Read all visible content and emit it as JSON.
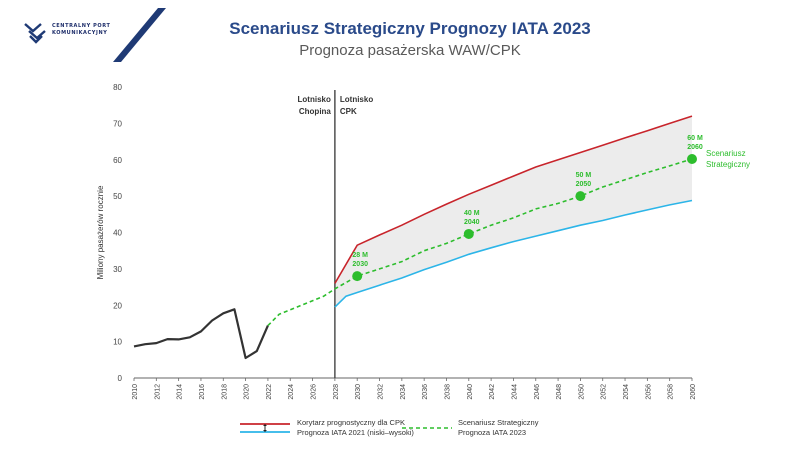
{
  "logo": {
    "line1": "CENTRALNY PORT",
    "line2": "KOMUNIKACYJNY"
  },
  "colors": {
    "navy": "#1f3a75",
    "title": "#2a4a8a",
    "subtitle": "#5a5a5a",
    "history": "#333333",
    "high": "#c8242b",
    "low": "#2cb5e8",
    "strategic": "#2dbd2d",
    "band": "#ececec"
  },
  "chart_data": {
    "type": "line",
    "title": "Scenariusz Strategiczny Prognozy IATA 2023",
    "subtitle": "Prognoza pasażerska WAW/CPK",
    "ylabel": "Miliony pasażerów rocznie",
    "xlabel": "",
    "xlim": [
      2010,
      2060
    ],
    "ylim": [
      0,
      80
    ],
    "x_ticks": [
      "2010",
      "2012",
      "2014",
      "2016",
      "2018",
      "2020",
      "2022",
      "2024",
      "2026",
      "2028",
      "2030",
      "2032",
      "2034",
      "2036",
      "2038",
      "2040",
      "2042",
      "2044",
      "2046",
      "2048",
      "2050",
      "2052",
      "2054",
      "2056",
      "2058",
      "2060"
    ],
    "y_ticks": [
      "0",
      "10",
      "20",
      "30",
      "40",
      "50",
      "60",
      "70",
      "80"
    ],
    "grid": false,
    "divider": {
      "x": 2028,
      "left_label": [
        "Lotnisko",
        "Chopina"
      ],
      "right_label": [
        "Lotnisko",
        "CPK"
      ]
    },
    "series": [
      {
        "key": "history",
        "points": [
          [
            2010,
            8.7
          ],
          [
            2011,
            9.3
          ],
          [
            2012,
            9.6
          ],
          [
            2013,
            10.7
          ],
          [
            2014,
            10.6
          ],
          [
            2015,
            11.2
          ],
          [
            2016,
            12.8
          ],
          [
            2017,
            15.8
          ],
          [
            2018,
            17.8
          ],
          [
            2019,
            18.9
          ],
          [
            2020,
            5.5
          ],
          [
            2021,
            7.4
          ],
          [
            2022,
            14.4
          ]
        ]
      },
      {
        "key": "strategic",
        "points": [
          [
            2022,
            14.4
          ],
          [
            2023,
            17.5
          ],
          [
            2025,
            20.0
          ],
          [
            2027,
            22.5
          ],
          [
            2028,
            24.5
          ],
          [
            2030,
            28.0
          ],
          [
            2032,
            30.0
          ],
          [
            2034,
            32.0
          ],
          [
            2036,
            35.0
          ],
          [
            2038,
            37.0
          ],
          [
            2040,
            39.6
          ],
          [
            2042,
            42.0
          ],
          [
            2044,
            44.0
          ],
          [
            2046,
            46.5
          ],
          [
            2048,
            48.0
          ],
          [
            2050,
            50.0
          ],
          [
            2052,
            52.5
          ],
          [
            2054,
            54.5
          ],
          [
            2056,
            56.5
          ],
          [
            2058,
            58.3
          ],
          [
            2060,
            60.2
          ]
        ]
      },
      {
        "key": "high",
        "points": [
          [
            2028,
            26.0
          ],
          [
            2030,
            36.5
          ],
          [
            2032,
            39.3
          ],
          [
            2034,
            42.0
          ],
          [
            2036,
            45.0
          ],
          [
            2038,
            47.8
          ],
          [
            2040,
            50.5
          ],
          [
            2042,
            53.0
          ],
          [
            2044,
            55.5
          ],
          [
            2046,
            58.0
          ],
          [
            2048,
            60.0
          ],
          [
            2050,
            62.0
          ],
          [
            2052,
            64.0
          ],
          [
            2054,
            66.0
          ],
          [
            2056,
            68.0
          ],
          [
            2058,
            70.0
          ],
          [
            2060,
            72.0
          ]
        ]
      },
      {
        "key": "low",
        "points": [
          [
            2028,
            19.5
          ],
          [
            2029,
            22.5
          ],
          [
            2030,
            23.5
          ],
          [
            2032,
            25.5
          ],
          [
            2034,
            27.5
          ],
          [
            2036,
            29.8
          ],
          [
            2038,
            31.8
          ],
          [
            2040,
            34.0
          ],
          [
            2042,
            35.8
          ],
          [
            2044,
            37.5
          ],
          [
            2046,
            39.0
          ],
          [
            2048,
            40.5
          ],
          [
            2050,
            42.0
          ],
          [
            2052,
            43.3
          ],
          [
            2054,
            44.8
          ],
          [
            2056,
            46.2
          ],
          [
            2058,
            47.6
          ],
          [
            2060,
            48.8
          ]
        ]
      }
    ],
    "milestones": [
      {
        "x": 2030,
        "y": 28,
        "label1": "28 M",
        "label2": "2030"
      },
      {
        "x": 2040,
        "y": 39.6,
        "label1": "40 M",
        "label2": "2040"
      },
      {
        "x": 2050,
        "y": 50,
        "label1": "50 M",
        "label2": "2050"
      },
      {
        "x": 2060,
        "y": 60.2,
        "label1": "60 M",
        "label2": "2060"
      }
    ],
    "end_label": [
      "Scenariusz",
      "Strategiczny"
    ],
    "legend": {
      "placement": "bottom",
      "left": [
        "Korytarz prognostyczny dla CPK",
        "Prognoza IATA 2021 (niski–wysoki)"
      ],
      "right": [
        "Scenariusz Strategiczny",
        "Prognoza IATA 2023"
      ]
    }
  }
}
